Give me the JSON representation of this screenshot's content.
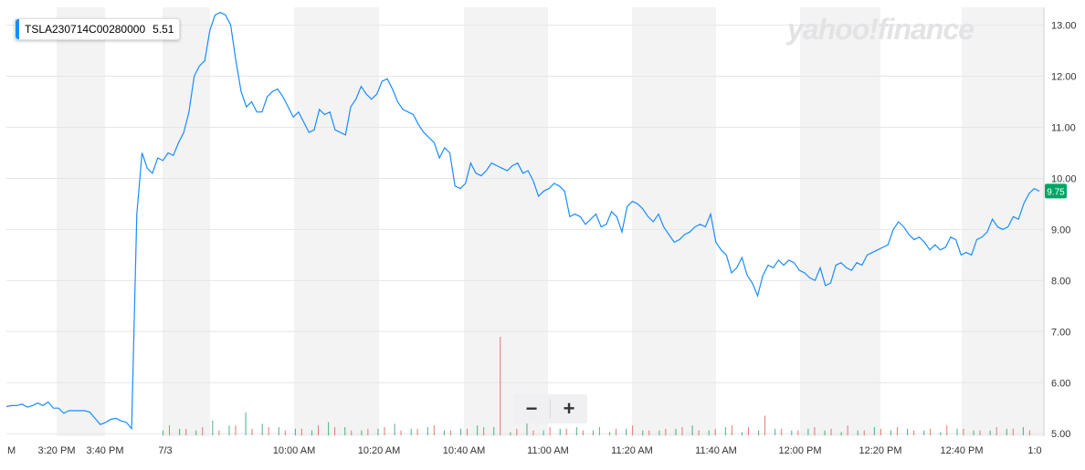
{
  "symbol": {
    "name": "TSLA230714C00280000",
    "value": "5.51"
  },
  "logo": {
    "text": "yahoo!finance"
  },
  "zoom": {
    "minus": "−",
    "plus": "+"
  },
  "colors": {
    "line": "#1a8cff",
    "bar_up": "#1e9e6a",
    "bar_down": "#e05555",
    "band": "#f3f3f3",
    "last_badge": "#00a563"
  },
  "chart_data": {
    "type": "line",
    "xlabel": "",
    "ylabel": "",
    "ylim": [
      4.95,
      13.35
    ],
    "y_ticks": [
      "5.00",
      "6.00",
      "7.00",
      "8.00",
      "9.00",
      "10.00",
      "11.00",
      "12.00",
      "13.00"
    ],
    "x_ticks": [
      "M",
      "3:20 PM",
      "3:40 PM",
      "7/3",
      "10:00 AM",
      "10:20 AM",
      "10:40 AM",
      "11:00 AM",
      "11:20 AM",
      "11:40 AM",
      "12:00 PM",
      "12:20 PM",
      "12:40 PM",
      "1:0"
    ],
    "last_price": "9.75",
    "grid": true,
    "series": [
      {
        "values": [
          5.53,
          5.55,
          5.55,
          5.58,
          5.52,
          5.55,
          5.6,
          5.55,
          5.62,
          5.5,
          5.5,
          5.4,
          5.45,
          5.45,
          5.45,
          5.45,
          5.42,
          5.3,
          5.18,
          5.22,
          5.28,
          5.3,
          5.25,
          5.22,
          5.1,
          9.3,
          10.5,
          10.2,
          10.1,
          10.4,
          10.35,
          10.5,
          10.45,
          10.7,
          10.9,
          11.3,
          12.0,
          12.2,
          12.3,
          12.9,
          13.2,
          13.25,
          13.2,
          13.0,
          12.3,
          11.7,
          11.4,
          11.5,
          11.3,
          11.3,
          11.6,
          11.7,
          11.75,
          11.6,
          11.4,
          11.2,
          11.3,
          11.1,
          10.9,
          10.95,
          11.35,
          11.25,
          11.3,
          10.95,
          10.9,
          10.85,
          11.4,
          11.55,
          11.8,
          11.65,
          11.55,
          11.65,
          11.9,
          11.95,
          11.75,
          11.5,
          11.35,
          11.3,
          11.25,
          11.05,
          10.9,
          10.8,
          10.7,
          10.4,
          10.6,
          10.5,
          9.85,
          9.8,
          9.9,
          10.3,
          10.1,
          10.05,
          10.15,
          10.3,
          10.25,
          10.2,
          10.15,
          10.25,
          10.3,
          10.1,
          10.15,
          9.95,
          9.65,
          9.75,
          9.8,
          9.9,
          9.85,
          9.75,
          9.25,
          9.3,
          9.25,
          9.1,
          9.2,
          9.3,
          9.05,
          9.1,
          9.35,
          9.25,
          8.95,
          9.45,
          9.55,
          9.5,
          9.4,
          9.25,
          9.15,
          9.3,
          9.05,
          8.9,
          8.75,
          8.8,
          8.9,
          8.95,
          9.05,
          9.1,
          9.05,
          9.3,
          8.75,
          8.6,
          8.5,
          8.15,
          8.25,
          8.45,
          8.1,
          7.95,
          7.7,
          8.1,
          8.3,
          8.25,
          8.4,
          8.3,
          8.4,
          8.35,
          8.2,
          8.15,
          8.05,
          8.0,
          8.25,
          7.9,
          7.95,
          8.3,
          8.35,
          8.25,
          8.2,
          8.35,
          8.3,
          8.5,
          8.55,
          8.6,
          8.65,
          8.7,
          9.0,
          9.15,
          9.05,
          8.9,
          8.8,
          8.85,
          8.75,
          8.6,
          8.7,
          8.6,
          8.65,
          8.85,
          8.8,
          8.5,
          8.55,
          8.5,
          8.8,
          8.85,
          8.95,
          9.2,
          9.05,
          9.0,
          9.05,
          9.25,
          9.2,
          9.5,
          9.7,
          9.8,
          9.75
        ]
      }
    ],
    "volume": {
      "up": [
        0.3,
        0.4,
        0.3,
        0.9,
        0.6,
        1.4,
        0.7,
        0.5,
        0.4,
        0.3,
        0.8,
        0.5,
        0.3,
        0.4,
        0.7,
        0.4,
        0.5,
        0.3,
        0.4,
        0.6,
        0.5,
        0.2,
        0.8,
        0.3,
        0.4,
        0.5,
        0.3,
        0.2,
        0.4,
        0.3,
        0.3,
        0.4,
        0.6,
        0.3,
        0.5,
        0.2,
        0.3,
        0.4,
        0.3,
        0.4,
        0.3,
        0.2,
        0.3,
        0.5,
        0.3,
        0.4,
        0.3,
        0.2,
        0.4,
        0.3,
        0.3,
        0.4,
        0.5
      ],
      "down": [
        0.6,
        0.4,
        0.5,
        0.3,
        0.6,
        0.4,
        0.5,
        0.3,
        0.4,
        0.6,
        0.5,
        0.3,
        0.4,
        0.5,
        0.3,
        0.4,
        0.6,
        0.3,
        0.4,
        0.5,
        6.0,
        0.4,
        0.3,
        0.5,
        0.4,
        0.3,
        0.5,
        0.4,
        0.6,
        0.3,
        0.4,
        0.5,
        0.3,
        0.4,
        0.6,
        0.5,
        1.2,
        0.4,
        0.3,
        0.5,
        0.4,
        0.6,
        0.3,
        0.4,
        0.5,
        0.3,
        0.4,
        0.6,
        0.4,
        0.3,
        0.5,
        0.4,
        0.3
      ]
    }
  }
}
